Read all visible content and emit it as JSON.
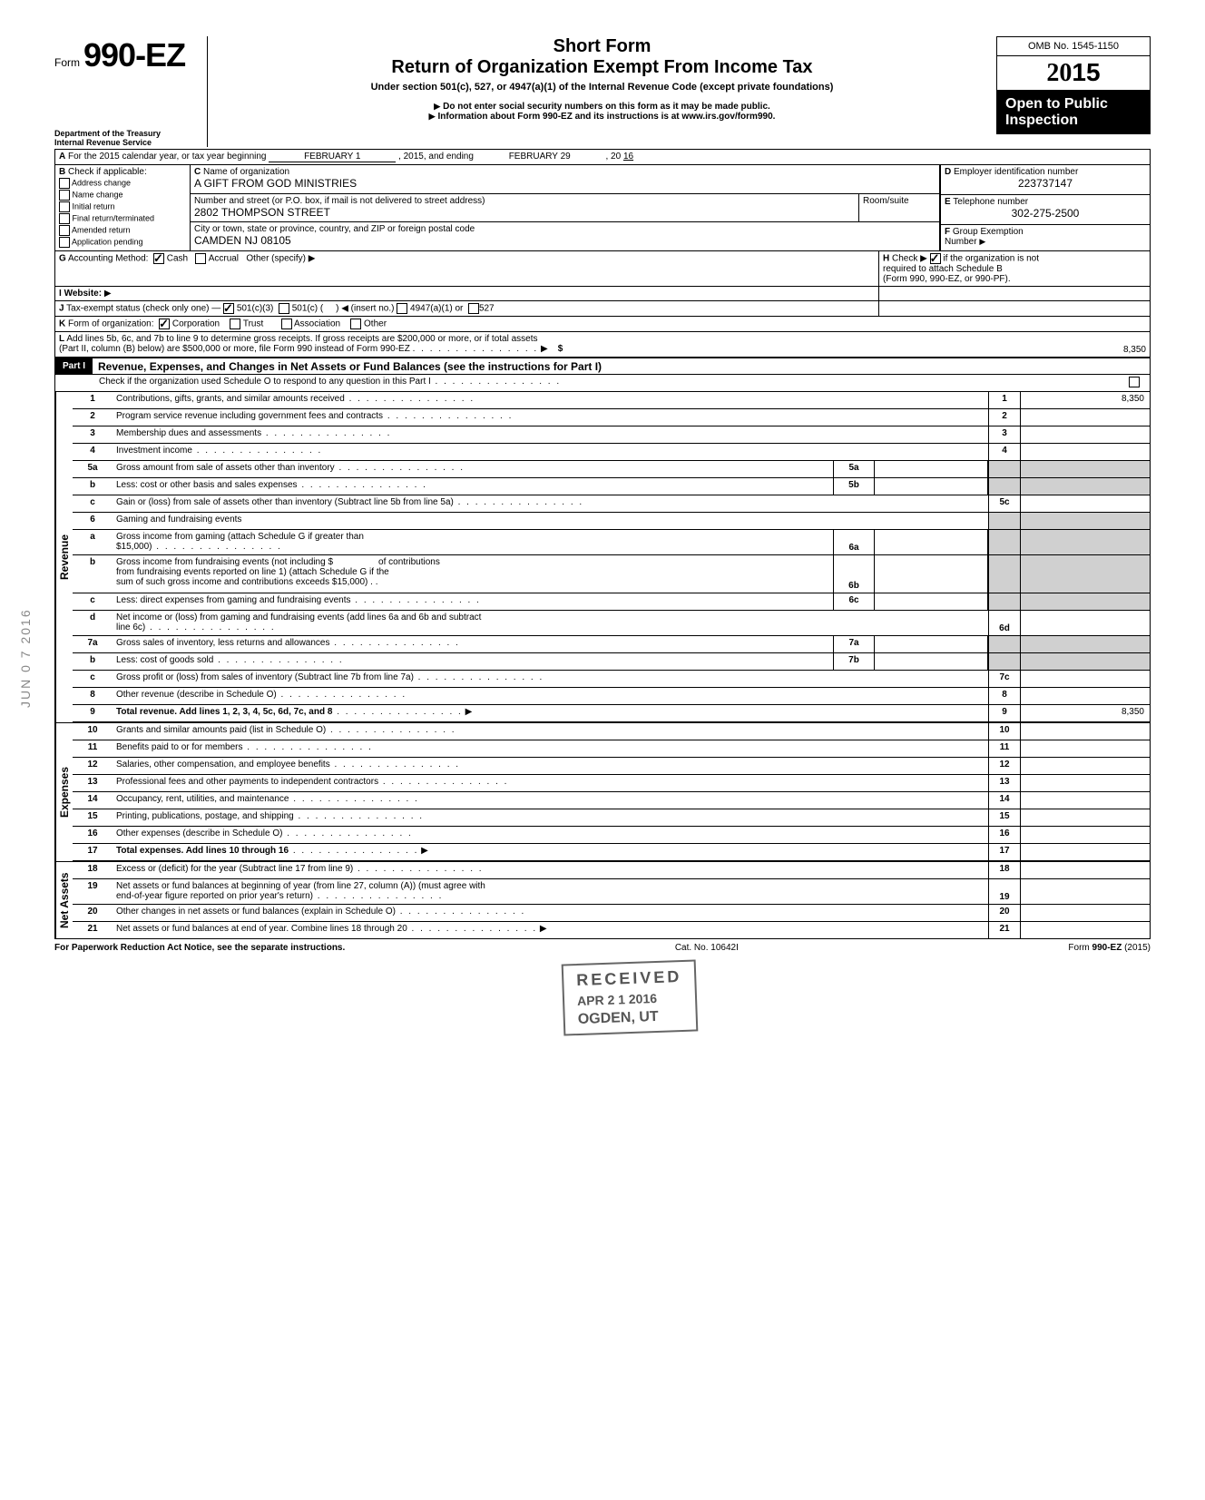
{
  "header": {
    "form_prefix": "Form",
    "form_number": "990-EZ",
    "short_form": "Short Form",
    "title": "Return of Organization Exempt From Income Tax",
    "subtitle": "Under section 501(c), 527, or 4947(a)(1) of the Internal Revenue Code (except private foundations)",
    "notice1": "Do not enter social security numbers on this form as it may be made public.",
    "notice2": "Information about Form 990-EZ and its instructions is at www.irs.gov/form990.",
    "dept1": "Department of the Treasury",
    "dept2": "Internal Revenue Service",
    "omb": "OMB No. 1545-1150",
    "year_prefix": "20",
    "year_suffix": "15",
    "open_public1": "Open to Public",
    "open_public2": "Inspection"
  },
  "section_a": {
    "label": "A",
    "text": "For the 2015 calendar year, or tax year beginning",
    "begin_label": "FEBRUARY 1",
    "mid": ", 2015, and ending",
    "end_label": "FEBRUARY 29",
    "end_year_prefix": ", 20",
    "end_year": "16"
  },
  "section_b": {
    "label": "B",
    "text": "Check if applicable:",
    "items": [
      "Address change",
      "Name change",
      "Initial return",
      "Final return/terminated",
      "Amended return",
      "Application pending"
    ]
  },
  "section_c": {
    "label": "C",
    "text": "Name of organization",
    "name": "A GIFT FROM GOD MINISTRIES",
    "addr_label": "Number and street (or P.O. box, if mail is not delivered to street address)",
    "room_label": "Room/suite",
    "street": "2802 THOMPSON STREET",
    "city_label": "City or town, state or province, country, and ZIP or foreign postal code",
    "city": "CAMDEN  NJ  08105"
  },
  "section_d": {
    "label": "D",
    "text": "Employer identification number",
    "value": "223737147"
  },
  "section_e": {
    "label": "E",
    "text": "Telephone number",
    "value": "302-275-2500"
  },
  "section_f": {
    "label": "F",
    "text": "Group Exemption",
    "number_label": "Number"
  },
  "section_g": {
    "label": "G",
    "text": "Accounting Method:",
    "cash": "Cash",
    "accrual": "Accrual",
    "other": "Other (specify)"
  },
  "section_h": {
    "label": "H",
    "text1": "Check",
    "text2": "if the organization is not",
    "text3": "required to attach Schedule B",
    "text4": "(Form 990, 990-EZ, or 990-PF)."
  },
  "section_i": {
    "label": "I",
    "text": "Website:"
  },
  "section_j": {
    "label": "J",
    "text": "Tax-exempt status (check only one) —",
    "opt1": "501(c)(3)",
    "opt2": "501(c) (",
    "insert": "(insert no.)",
    "opt3": "4947(a)(1) or",
    "opt4": "527"
  },
  "section_k": {
    "label": "K",
    "text": "Form of organization:",
    "corp": "Corporation",
    "trust": "Trust",
    "assoc": "Association",
    "other": "Other"
  },
  "section_l": {
    "label": "L",
    "text1": "Add lines 5b, 6c, and 7b to line 9 to determine gross receipts. If gross receipts are $200,000 or more, or if total assets",
    "text2": "(Part II, column (B) below) are $500,000 or more, file Form 990 instead of Form 990-EZ",
    "value": "8,350",
    "dollar": "$"
  },
  "part1": {
    "label": "Part I",
    "title": "Revenue, Expenses, and Changes in Net Assets or Fund Balances (see the instructions for Part I)",
    "check_text": "Check if the organization used Schedule O to respond to any question in this Part I"
  },
  "revenue_label": "Revenue",
  "expenses_label": "Expenses",
  "netassets_label": "Net Assets",
  "lines": {
    "l1": {
      "num": "1",
      "desc": "Contributions, gifts, grants, and similar amounts received",
      "end": "1",
      "val": "8,350"
    },
    "l2": {
      "num": "2",
      "desc": "Program service revenue including government fees and contracts",
      "end": "2"
    },
    "l3": {
      "num": "3",
      "desc": "Membership dues and assessments",
      "end": "3"
    },
    "l4": {
      "num": "4",
      "desc": "Investment income",
      "end": "4"
    },
    "l5a": {
      "num": "5a",
      "desc": "Gross amount from sale of assets other than inventory",
      "sub": "5a"
    },
    "l5b": {
      "num": "b",
      "desc": "Less: cost or other basis and sales expenses",
      "sub": "5b"
    },
    "l5c": {
      "num": "c",
      "desc": "Gain or (loss) from sale of assets other than inventory (Subtract line 5b from line 5a)",
      "end": "5c"
    },
    "l6": {
      "num": "6",
      "desc": "Gaming and fundraising events"
    },
    "l6a": {
      "num": "a",
      "desc1": "Gross income from gaming (attach Schedule G if greater than",
      "desc2": "$15,000)",
      "sub": "6a"
    },
    "l6b": {
      "num": "b",
      "desc1": "Gross income from fundraising events (not including  $",
      "desc2": "of contributions",
      "desc3": "from fundraising events reported on line 1) (attach Schedule G if the",
      "desc4": "sum of such gross income and contributions exceeds $15,000)",
      "sub": "6b"
    },
    "l6c": {
      "num": "c",
      "desc": "Less: direct expenses from gaming and fundraising events",
      "sub": "6c"
    },
    "l6d": {
      "num": "d",
      "desc1": "Net income or (loss) from gaming and fundraising events (add lines 6a and 6b and subtract",
      "desc2": "line 6c)",
      "end": "6d"
    },
    "l7a": {
      "num": "7a",
      "desc": "Gross sales of inventory, less returns and allowances",
      "sub": "7a"
    },
    "l7b": {
      "num": "b",
      "desc": "Less: cost of goods sold",
      "sub": "7b"
    },
    "l7c": {
      "num": "c",
      "desc": "Gross profit or (loss) from sales of inventory (Subtract line 7b from line 7a)",
      "end": "7c"
    },
    "l8": {
      "num": "8",
      "desc": "Other revenue (describe in Schedule O)",
      "end": "8"
    },
    "l9": {
      "num": "9",
      "desc": "Total revenue. Add lines 1, 2, 3, 4, 5c, 6d, 7c, and 8",
      "end": "9",
      "val": "8,350",
      "bold": true
    },
    "l10": {
      "num": "10",
      "desc": "Grants and similar amounts paid (list in Schedule O)",
      "end": "10"
    },
    "l11": {
      "num": "11",
      "desc": "Benefits paid to or for members",
      "end": "11"
    },
    "l12": {
      "num": "12",
      "desc": "Salaries, other compensation, and employee benefits",
      "end": "12"
    },
    "l13": {
      "num": "13",
      "desc": "Professional fees and other payments to independent contractors",
      "end": "13"
    },
    "l14": {
      "num": "14",
      "desc": "Occupancy, rent, utilities, and maintenance",
      "end": "14"
    },
    "l15": {
      "num": "15",
      "desc": "Printing, publications, postage, and shipping",
      "end": "15"
    },
    "l16": {
      "num": "16",
      "desc": "Other expenses (describe in Schedule O)",
      "end": "16"
    },
    "l17": {
      "num": "17",
      "desc": "Total expenses. Add lines 10 through 16",
      "end": "17",
      "bold": true
    },
    "l18": {
      "num": "18",
      "desc": "Excess or (deficit) for the year (Subtract line 17 from line 9)",
      "end": "18"
    },
    "l19": {
      "num": "19",
      "desc1": "Net assets or fund balances at beginning of year (from line 27, column (A)) (must agree with",
      "desc2": "end-of-year figure reported on prior year's return)",
      "end": "19"
    },
    "l20": {
      "num": "20",
      "desc": "Other changes in net assets or fund balances (explain in Schedule O)",
      "end": "20"
    },
    "l21": {
      "num": "21",
      "desc": "Net assets or fund balances at end of year. Combine lines 18 through 20",
      "end": "21"
    }
  },
  "stamp": {
    "received": "RECEIVED",
    "date": "APR 2 1 2016",
    "place": "OGDEN, UT"
  },
  "side_stamp": "JUN 0 7 2016",
  "footer": {
    "left": "For Paperwork Reduction Act Notice, see the separate instructions.",
    "mid": "Cat. No. 10642I",
    "right": "Form 990-EZ (2015)"
  },
  "colors": {
    "black": "#000000",
    "shade": "#d0d0d0"
  }
}
